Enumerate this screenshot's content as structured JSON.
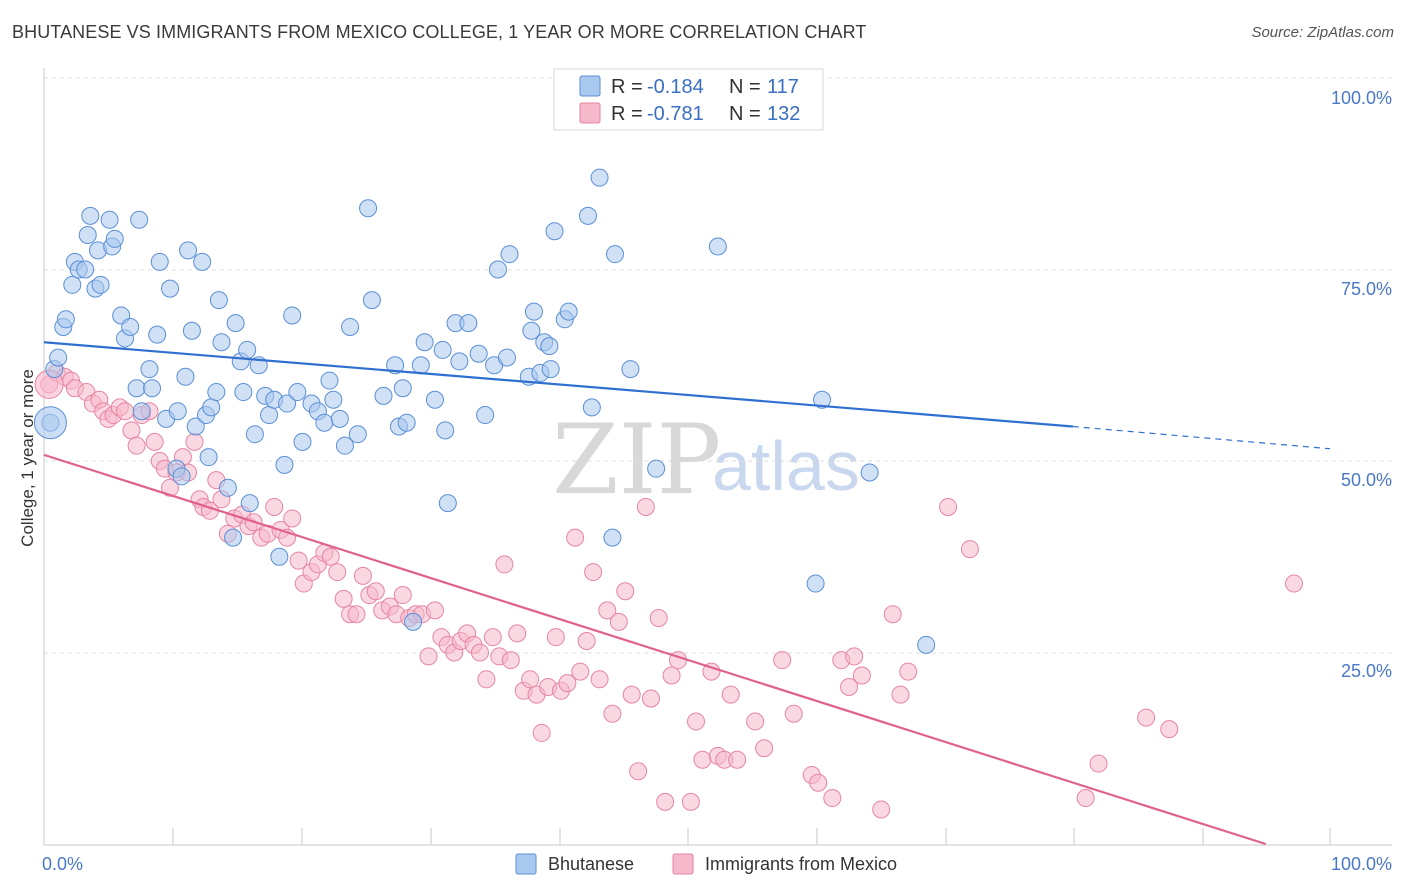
{
  "header": {
    "title": "BHUTANESE VS IMMIGRANTS FROM MEXICO COLLEGE, 1 YEAR OR MORE CORRELATION CHART",
    "source": "Source: ZipAtlas.com"
  },
  "watermark": {
    "part1": "ZIP",
    "part2": "atlas"
  },
  "colors": {
    "blue_fill": "#a9c8ef",
    "blue_stroke": "#5b8fd6",
    "blue_line": "#2f6fd0",
    "pink_fill": "#f6b8cb",
    "pink_stroke": "#e685a5",
    "pink_line": "#e0608e",
    "tick_text": "#4a78c8"
  },
  "legend": {
    "rows": [
      {
        "r_label": "R = ",
        "r_value": "-0.184",
        "n_label": "N = ",
        "n_value": "117"
      },
      {
        "r_label": "R = ",
        "r_value": "-0.781",
        "n_label": "N = ",
        "n_value": "132"
      }
    ]
  },
  "bottom_legend": {
    "items": [
      "Bhutanese",
      "Immigrants from Mexico"
    ]
  },
  "chart_data": {
    "type": "scatter",
    "title": "BHUTANESE VS IMMIGRANTS FROM MEXICO COLLEGE, 1 YEAR OR MORE CORRELATION CHART",
    "ylabel": "College, 1 year or more",
    "xlabel": "",
    "xlim": [
      0,
      100
    ],
    "ylim": [
      0,
      100
    ],
    "x_tick_labels": [
      "0.0%",
      "100.0%"
    ],
    "y_tick_labels": [
      "100.0%",
      "75.0%",
      "50.0%",
      "25.0%"
    ],
    "y_ticks": [
      100,
      75,
      50,
      25
    ],
    "grid": "horizontal dashed",
    "legend_placement": "top-center",
    "series": [
      {
        "name": "Bhutanese",
        "R": -0.184,
        "N": 117,
        "trend": {
          "x": [
            0,
            80
          ],
          "y": [
            65.5,
            54.5
          ],
          "dashed_extension": {
            "x": [
              80,
              100
            ],
            "y": [
              54.5,
              51.6
            ]
          }
        },
        "points": [
          [
            0.5,
            55.0
          ],
          [
            0.8,
            62.0
          ],
          [
            1.1,
            63.5
          ],
          [
            1.5,
            67.5
          ],
          [
            1.7,
            68.5
          ],
          [
            2.2,
            73.0
          ],
          [
            2.4,
            76.0
          ],
          [
            2.7,
            75.0
          ],
          [
            3.2,
            75.0
          ],
          [
            3.4,
            79.5
          ],
          [
            3.6,
            82.0
          ],
          [
            4.0,
            72.5
          ],
          [
            4.4,
            73.0
          ],
          [
            4.2,
            77.5
          ],
          [
            5.1,
            81.5
          ],
          [
            5.3,
            78.0
          ],
          [
            5.5,
            79.0
          ],
          [
            6.0,
            69.0
          ],
          [
            6.3,
            66.0
          ],
          [
            6.7,
            67.5
          ],
          [
            7.2,
            59.5
          ],
          [
            7.6,
            56.5
          ],
          [
            7.4,
            81.5
          ],
          [
            8.2,
            62.0
          ],
          [
            8.4,
            59.5
          ],
          [
            8.8,
            66.5
          ],
          [
            9.0,
            76.0
          ],
          [
            9.5,
            55.5
          ],
          [
            9.8,
            72.5
          ],
          [
            10.3,
            49.0
          ],
          [
            10.4,
            56.5
          ],
          [
            10.7,
            48.0
          ],
          [
            11.0,
            61.0
          ],
          [
            11.2,
            77.5
          ],
          [
            11.5,
            67.0
          ],
          [
            11.8,
            54.5
          ],
          [
            12.3,
            76.0
          ],
          [
            12.6,
            56.0
          ],
          [
            12.8,
            50.5
          ],
          [
            13.0,
            57.0
          ],
          [
            13.4,
            59.0
          ],
          [
            13.6,
            71.0
          ],
          [
            13.8,
            65.5
          ],
          [
            14.3,
            46.5
          ],
          [
            14.7,
            40.0
          ],
          [
            14.9,
            68.0
          ],
          [
            15.3,
            63.0
          ],
          [
            15.5,
            59.0
          ],
          [
            15.8,
            64.5
          ],
          [
            16.0,
            44.5
          ],
          [
            16.4,
            53.5
          ],
          [
            16.7,
            62.5
          ],
          [
            17.2,
            58.5
          ],
          [
            17.5,
            56.0
          ],
          [
            17.9,
            58.0
          ],
          [
            18.3,
            37.5
          ],
          [
            18.7,
            49.5
          ],
          [
            18.9,
            57.5
          ],
          [
            19.3,
            69.0
          ],
          [
            19.7,
            59.0
          ],
          [
            20.1,
            52.5
          ],
          [
            20.8,
            57.5
          ],
          [
            21.3,
            56.5
          ],
          [
            21.8,
            55.0
          ],
          [
            22.2,
            60.5
          ],
          [
            22.5,
            58.0
          ],
          [
            23.0,
            55.5
          ],
          [
            23.4,
            52.0
          ],
          [
            23.8,
            67.5
          ],
          [
            24.4,
            53.5
          ],
          [
            25.2,
            83.0
          ],
          [
            25.5,
            71.0
          ],
          [
            26.4,
            58.5
          ],
          [
            27.3,
            62.5
          ],
          [
            27.6,
            54.5
          ],
          [
            27.9,
            59.5
          ],
          [
            28.2,
            55.0
          ],
          [
            28.7,
            29.0
          ],
          [
            29.3,
            62.5
          ],
          [
            29.6,
            65.5
          ],
          [
            30.4,
            58.0
          ],
          [
            31.0,
            64.5
          ],
          [
            31.2,
            54.0
          ],
          [
            31.4,
            44.5
          ],
          [
            32.0,
            68.0
          ],
          [
            32.3,
            63.0
          ],
          [
            33.0,
            68.0
          ],
          [
            33.8,
            64.0
          ],
          [
            34.3,
            56.0
          ],
          [
            35.0,
            62.5
          ],
          [
            35.3,
            75.0
          ],
          [
            36.0,
            63.5
          ],
          [
            36.2,
            77.0
          ],
          [
            37.7,
            61.0
          ],
          [
            37.9,
            67.0
          ],
          [
            38.1,
            69.5
          ],
          [
            38.6,
            61.5
          ],
          [
            38.9,
            65.5
          ],
          [
            39.4,
            62.0
          ],
          [
            39.3,
            65.0
          ],
          [
            39.7,
            80.0
          ],
          [
            40.5,
            68.5
          ],
          [
            40.8,
            69.5
          ],
          [
            42.3,
            82.0
          ],
          [
            42.6,
            57.0
          ],
          [
            43.2,
            87.0
          ],
          [
            44.2,
            40.0
          ],
          [
            44.4,
            77.0
          ],
          [
            45.6,
            62.0
          ],
          [
            52.4,
            78.0
          ],
          [
            60.5,
            58.0
          ],
          [
            64.2,
            48.5
          ],
          [
            68.6,
            26.0
          ],
          [
            60.0,
            34.0
          ],
          [
            47.6,
            49.0
          ]
        ]
      },
      {
        "name": "Immigrants from Mexico",
        "R": -0.781,
        "N": 132,
        "trend": {
          "x": [
            0,
            95
          ],
          "y": [
            50.8,
            0
          ]
        },
        "points": [
          [
            0.4,
            60.0
          ],
          [
            1.0,
            61.5
          ],
          [
            1.6,
            61.0
          ],
          [
            2.1,
            60.5
          ],
          [
            2.4,
            59.5
          ],
          [
            3.3,
            59.0
          ],
          [
            3.8,
            57.5
          ],
          [
            4.3,
            58.0
          ],
          [
            4.6,
            56.5
          ],
          [
            5.0,
            55.5
          ],
          [
            5.4,
            56.0
          ],
          [
            5.9,
            57.0
          ],
          [
            6.3,
            56.5
          ],
          [
            6.8,
            54.0
          ],
          [
            7.2,
            52.0
          ],
          [
            7.6,
            56.0
          ],
          [
            8.2,
            56.5
          ],
          [
            8.6,
            52.5
          ],
          [
            9.0,
            50.0
          ],
          [
            9.4,
            49.0
          ],
          [
            9.8,
            46.5
          ],
          [
            10.3,
            48.5
          ],
          [
            10.8,
            50.5
          ],
          [
            11.2,
            48.5
          ],
          [
            11.7,
            52.5
          ],
          [
            12.1,
            45.0
          ],
          [
            12.4,
            44.0
          ],
          [
            12.9,
            43.5
          ],
          [
            13.4,
            47.5
          ],
          [
            13.8,
            45.0
          ],
          [
            14.3,
            40.5
          ],
          [
            14.8,
            42.5
          ],
          [
            15.4,
            43.0
          ],
          [
            15.9,
            41.5
          ],
          [
            16.3,
            42.0
          ],
          [
            16.9,
            40.0
          ],
          [
            17.4,
            40.5
          ],
          [
            17.9,
            44.0
          ],
          [
            18.4,
            41.0
          ],
          [
            18.9,
            40.0
          ],
          [
            19.3,
            42.5
          ],
          [
            19.8,
            37.0
          ],
          [
            20.2,
            34.0
          ],
          [
            20.8,
            35.5
          ],
          [
            21.3,
            36.5
          ],
          [
            21.8,
            38.0
          ],
          [
            22.3,
            37.5
          ],
          [
            22.8,
            35.5
          ],
          [
            23.3,
            32.0
          ],
          [
            23.8,
            30.0
          ],
          [
            24.3,
            30.0
          ],
          [
            24.8,
            35.0
          ],
          [
            25.3,
            32.5
          ],
          [
            25.8,
            33.0
          ],
          [
            26.3,
            30.5
          ],
          [
            26.9,
            31.0
          ],
          [
            27.4,
            30.0
          ],
          [
            27.9,
            32.5
          ],
          [
            28.4,
            29.5
          ],
          [
            28.9,
            30.0
          ],
          [
            29.4,
            30.0
          ],
          [
            29.9,
            24.5
          ],
          [
            30.4,
            30.5
          ],
          [
            30.9,
            27.0
          ],
          [
            31.4,
            26.0
          ],
          [
            31.9,
            25.0
          ],
          [
            32.4,
            26.5
          ],
          [
            32.9,
            27.5
          ],
          [
            33.4,
            26.0
          ],
          [
            33.9,
            25.0
          ],
          [
            34.4,
            21.5
          ],
          [
            34.9,
            27.0
          ],
          [
            35.4,
            24.5
          ],
          [
            35.8,
            36.5
          ],
          [
            36.3,
            24.0
          ],
          [
            36.8,
            27.5
          ],
          [
            37.3,
            20.0
          ],
          [
            37.8,
            21.5
          ],
          [
            38.3,
            19.5
          ],
          [
            38.7,
            14.5
          ],
          [
            39.2,
            20.5
          ],
          [
            39.8,
            27.0
          ],
          [
            40.2,
            20.0
          ],
          [
            40.7,
            21.0
          ],
          [
            41.3,
            40.0
          ],
          [
            41.7,
            22.5
          ],
          [
            42.2,
            26.5
          ],
          [
            42.7,
            35.5
          ],
          [
            43.2,
            21.5
          ],
          [
            43.8,
            30.5
          ],
          [
            44.2,
            17.0
          ],
          [
            44.7,
            29.0
          ],
          [
            45.2,
            33.0
          ],
          [
            45.7,
            19.5
          ],
          [
            46.2,
            9.5
          ],
          [
            46.8,
            44.0
          ],
          [
            47.2,
            19.0
          ],
          [
            47.8,
            29.5
          ],
          [
            48.3,
            5.5
          ],
          [
            48.8,
            22.0
          ],
          [
            49.3,
            24.0
          ],
          [
            50.3,
            5.5
          ],
          [
            50.7,
            16.0
          ],
          [
            51.2,
            11.0
          ],
          [
            51.9,
            22.5
          ],
          [
            52.4,
            11.5
          ],
          [
            52.9,
            11.0
          ],
          [
            53.4,
            19.5
          ],
          [
            53.9,
            11.0
          ],
          [
            55.3,
            16.0
          ],
          [
            56.0,
            12.5
          ],
          [
            57.4,
            24.0
          ],
          [
            58.3,
            17.0
          ],
          [
            59.7,
            9.0
          ],
          [
            60.2,
            8.0
          ],
          [
            61.3,
            6.0
          ],
          [
            62.0,
            24.0
          ],
          [
            62.6,
            20.5
          ],
          [
            63.0,
            24.5
          ],
          [
            63.6,
            22.0
          ],
          [
            65.1,
            4.5
          ],
          [
            66.0,
            30.0
          ],
          [
            66.6,
            19.5
          ],
          [
            67.2,
            22.5
          ],
          [
            70.3,
            44.0
          ],
          [
            72.0,
            38.5
          ],
          [
            81.0,
            6.0
          ],
          [
            82.0,
            10.5
          ],
          [
            85.7,
            16.5
          ],
          [
            87.5,
            15.0
          ],
          [
            97.2,
            34.0
          ]
        ]
      }
    ]
  }
}
